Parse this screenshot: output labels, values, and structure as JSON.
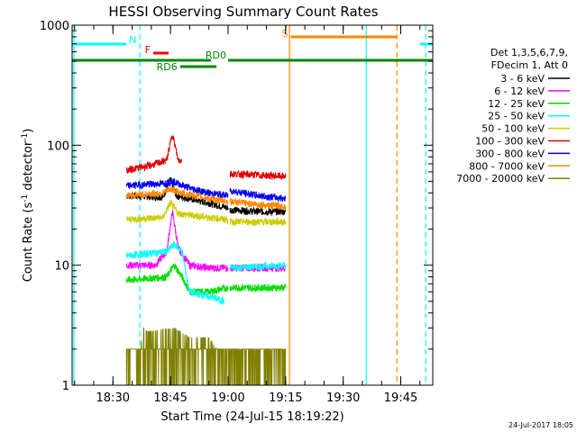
{
  "chart_data": {
    "type": "line",
    "title": "HESSI Observing Summary Count Rates",
    "xlabel": "Start Time (24-Jul-15 18:19:22)",
    "ylabel": "Count Rate (s⁻¹ detector⁻¹)",
    "ylabel_main": "Count Rate (s",
    "ylabel_sup1": "-1",
    "ylabel_mid": " detector",
    "ylabel_sup2": "-1",
    "ylabel_end": ")",
    "y_scale": "log",
    "ylim": [
      1,
      1000
    ],
    "xlim": [
      "18:19:22",
      "19:53:20"
    ],
    "x_ticks": [
      "18:30",
      "18:45",
      "19:00",
      "19:15",
      "19:30",
      "19:45"
    ],
    "y_ticks": [
      "1",
      "10",
      "100",
      "1000"
    ],
    "timestamp": "24-Jul-2017 18:05",
    "legend": {
      "placement": "right",
      "header1": "Det 1,3,5,6,7,9,",
      "header2": "FDecim 1, Att 0",
      "entries": [
        {
          "label": "3 - 6 keV",
          "color": "#000000"
        },
        {
          "label": "6 - 12 keV",
          "color": "#ff00ff"
        },
        {
          "label": "12 - 25 keV",
          "color": "#00dd00"
        },
        {
          "label": "25 - 50 keV",
          "color": "#00ffff"
        },
        {
          "label": "50 - 100 keV",
          "color": "#cccc00"
        },
        {
          "label": "100 - 300 keV",
          "color": "#dd0000"
        },
        {
          "label": "300 - 800 keV",
          "color": "#0000ee"
        },
        {
          "label": "800 - 7000 keV",
          "color": "#ff8800"
        },
        {
          "label": "7000 - 20000 keV",
          "color": "#808000"
        }
      ]
    },
    "flag_bars": [
      {
        "label": "N",
        "color": "#00ffff",
        "segments": [
          [
            "18:19:22",
            "18:33:30"
          ],
          [
            "19:50:00",
            "19:53:20"
          ]
        ]
      },
      {
        "label": "F",
        "color": "#ff0000",
        "segments": [
          [
            "18:40:30",
            "18:44:30"
          ]
        ]
      },
      {
        "label": "S",
        "color": "#ff8800",
        "segments": [
          [
            "19:16:20",
            "19:44:00"
          ]
        ]
      },
      {
        "label": "RD0",
        "color": "#008800",
        "segments": [
          [
            "18:19:22",
            "18:55:30"
          ],
          [
            "19:00:00",
            "19:53:20"
          ]
        ]
      },
      {
        "label": "RD6",
        "color": "#008800",
        "segments": [
          [
            "18:47:30",
            "18:57:00"
          ]
        ]
      }
    ],
    "vlines": [
      {
        "time": "18:19:50",
        "color": "#00ffff",
        "style": "solid"
      },
      {
        "time": "18:37:00",
        "color": "#00ffff",
        "style": "dashed"
      },
      {
        "time": "19:16:00",
        "color": "#ff8800",
        "style": "solid"
      },
      {
        "time": "19:36:00",
        "color": "#00ffff",
        "style": "solid"
      },
      {
        "time": "19:44:00",
        "color": "#ff8800",
        "style": "dashed"
      },
      {
        "time": "19:51:30",
        "color": "#00ffff",
        "style": "dashed"
      }
    ],
    "series": [
      {
        "name": "3 - 6 keV",
        "color": "#000000",
        "segments": [
          {
            "t": [
              "18:33:30",
              "18:43:00",
              "18:45:00",
              "18:46:30",
              "18:55:00",
              "19:00:00"
            ],
            "y": [
              38,
              37,
              52,
              38,
              33,
              30
            ]
          },
          {
            "t": [
              "19:00:30",
              "19:08:00",
              "19:15:00"
            ],
            "y": [
              29,
              28,
              28
            ]
          }
        ]
      },
      {
        "name": "6 - 12 keV",
        "color": "#ff00ff",
        "segments": [
          {
            "t": [
              "18:33:30",
              "18:41:00",
              "18:44:00",
              "18:45:30",
              "18:47:00",
              "18:50:00",
              "18:55:00",
              "19:00:00"
            ],
            "y": [
              10,
              10,
              13,
              28,
              14,
              10,
              9.5,
              9.5
            ]
          },
          {
            "t": [
              "19:00:30",
              "19:15:00"
            ],
            "y": [
              9.5,
              9.5
            ]
          }
        ]
      },
      {
        "name": "12 - 25 keV",
        "color": "#00dd00",
        "segments": [
          {
            "t": [
              "18:33:30",
              "18:44:00",
              "18:46:00",
              "18:48:00",
              "18:50:00",
              "18:55:00",
              "19:00:00"
            ],
            "y": [
              7.5,
              8,
              10,
              8,
              6,
              6,
              6.5
            ]
          },
          {
            "t": [
              "19:00:30",
              "19:15:00"
            ],
            "y": [
              6.5,
              6.5
            ]
          }
        ]
      },
      {
        "name": "25 - 50 keV",
        "color": "#00ffff",
        "segments": [
          {
            "t": [
              "18:33:30",
              "18:44:00",
              "18:46:00",
              "18:48:00",
              "18:50:00",
              "18:55:00",
              "18:59:00"
            ],
            "y": [
              12,
              13,
              15,
              13,
              6,
              5.5,
              5
            ]
          },
          {
            "t": [
              "19:00:30",
              "19:15:00"
            ],
            "y": [
              9.5,
              10
            ]
          }
        ]
      },
      {
        "name": "50 - 100 keV",
        "color": "#cccc00",
        "segments": [
          {
            "t": [
              "18:33:30",
              "18:43:00",
              "18:45:00",
              "18:47:00",
              "18:55:00",
              "19:00:00"
            ],
            "y": [
              24,
              25,
              33,
              27,
              25,
              24
            ]
          },
          {
            "t": [
              "19:00:30",
              "19:15:00"
            ],
            "y": [
              23,
              23
            ]
          }
        ]
      },
      {
        "name": "100 - 300 keV",
        "color": "#dd0000",
        "segments": [
          {
            "t": [
              "18:33:30",
              "18:40:00",
              "18:44:00",
              "18:45:30",
              "18:47:00",
              "18:48:00"
            ],
            "y": [
              62,
              68,
              75,
              125,
              75,
              75
            ]
          },
          {
            "t": [
              "19:00:30",
              "19:15:00"
            ],
            "y": [
              58,
              55
            ]
          }
        ]
      },
      {
        "name": "300 - 800 keV",
        "color": "#0000ee",
        "segments": [
          {
            "t": [
              "18:33:30",
              "18:43:00",
              "18:45:30",
              "18:50:00",
              "18:55:00",
              "19:00:00"
            ],
            "y": [
              46,
              48,
              50,
              44,
              40,
              38
            ]
          },
          {
            "t": [
              "19:00:30",
              "19:08:00",
              "19:15:00"
            ],
            "y": [
              42,
              38,
              36
            ]
          }
        ]
      },
      {
        "name": "800 - 7000 keV",
        "color": "#ff8800",
        "segments": [
          {
            "t": [
              "18:33:30",
              "18:43:00",
              "18:45:00",
              "18:48:00",
              "18:55:00",
              "19:00:00"
            ],
            "y": [
              38,
              40,
              43,
              40,
              36,
              34
            ]
          },
          {
            "t": [
              "19:00:30",
              "19:08:00",
              "19:15:00"
            ],
            "y": [
              34,
              32,
              31
            ]
          }
        ]
      },
      {
        "name": "7000 - 20000 keV",
        "color": "#808000",
        "segments": [
          {
            "t": [
              "18:33:30",
              "18:37:00",
              "18:38:00",
              "18:39:00",
              "18:46:00",
              "18:50:00",
              "18:55:00",
              "18:57:00",
              "18:59:00",
              "19:00:30",
              "19:15:00"
            ],
            "y": [
              2,
              2,
              3,
              2.8,
              3,
              2.5,
              2.5,
              2,
              2,
              2,
              2
            ]
          }
        ]
      }
    ]
  }
}
